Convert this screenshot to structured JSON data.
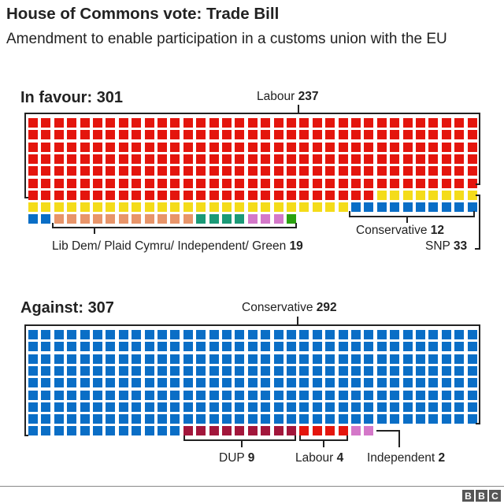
{
  "header": {
    "title": "House of Commons vote: Trade Bill",
    "subtitle": "Amendment to enable participation in a customs union with the EU"
  },
  "colors": {
    "Labour": "#e4150d",
    "SNP": "#f4dc1a",
    "Conservative": "#0a6ec6",
    "LibDem": "#e8956a",
    "Plaid": "#1b9a77",
    "Independent": "#d478c9",
    "Green": "#2aa10f",
    "DUP": "#a2163b"
  },
  "in_favour": {
    "label": "In favour:",
    "total": "301",
    "labels": {
      "labour_name": "Labour",
      "labour_count": "237",
      "conservative_name": "Conservative",
      "conservative_count": "12",
      "snp_name": "SNP",
      "snp_count": "33",
      "others_name": "Lib Dem/ Plaid Cymru/ Independent/ Green",
      "others_count": "19"
    }
  },
  "against": {
    "label": "Against:",
    "total": "307",
    "labels": {
      "conservative_name": "Conservative",
      "conservative_count": "292",
      "dup_name": "DUP",
      "dup_count": "9",
      "labour_name": "Labour",
      "labour_count": "4",
      "independent_name": "Independent",
      "independent_count": "2"
    }
  },
  "chart_data": {
    "type": "waffle",
    "title": "House of Commons vote: Trade Bill",
    "subtitle": "Amendment to enable participation in a customs union with the EU",
    "columns_per_row": 35,
    "groups": [
      {
        "name": "In favour",
        "total": 301,
        "series": [
          {
            "name": "Labour",
            "value": 237,
            "color": "#e4150d"
          },
          {
            "name": "SNP",
            "value": 33,
            "color": "#f4dc1a"
          },
          {
            "name": "Conservative",
            "value": 12,
            "color": "#0a6ec6"
          },
          {
            "name": "Lib Dem",
            "value": 11,
            "color": "#e8956a"
          },
          {
            "name": "Plaid Cymru",
            "value": 4,
            "color": "#1b9a77"
          },
          {
            "name": "Independent",
            "value": 3,
            "color": "#d478c9"
          },
          {
            "name": "Green",
            "value": 1,
            "color": "#2aa10f"
          }
        ]
      },
      {
        "name": "Against",
        "total": 307,
        "series": [
          {
            "name": "Conservative",
            "value": 292,
            "color": "#0a6ec6"
          },
          {
            "name": "DUP",
            "value": 9,
            "color": "#a2163b"
          },
          {
            "name": "Labour",
            "value": 4,
            "color": "#e4150d"
          },
          {
            "name": "Independent",
            "value": 2,
            "color": "#d478c9"
          }
        ]
      }
    ]
  },
  "footer": {
    "logo_letters": [
      "B",
      "B",
      "C"
    ]
  }
}
